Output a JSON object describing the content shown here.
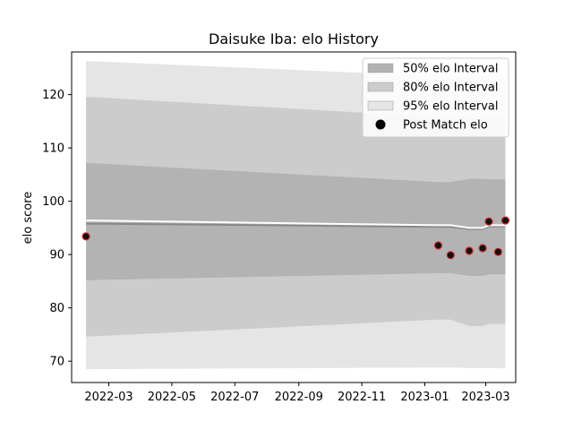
{
  "chart_data": {
    "type": "line",
    "title": "Daisuke Iba: elo History",
    "xlabel": "",
    "ylabel": "elo score",
    "x_ticks": [
      "2022-03",
      "2022-05",
      "2022-07",
      "2022-09",
      "2022-11",
      "2023-01",
      "2023-03"
    ],
    "y_ticks": [
      70,
      80,
      90,
      100,
      110,
      120
    ],
    "xlim": [
      "2022-01-24",
      "2023-03-30"
    ],
    "ylim": [
      66,
      128
    ],
    "grid": false,
    "legend_position": "top-right",
    "legend": [
      {
        "label": "50% elo Interval",
        "kind": "band",
        "color": "#b3b3b3"
      },
      {
        "label": "80% elo Interval",
        "kind": "band",
        "color": "#cccccc"
      },
      {
        "label": "95% elo Interval",
        "kind": "band",
        "color": "#e5e5e5"
      },
      {
        "label": "Post Match elo",
        "kind": "marker",
        "color": "#000000"
      }
    ],
    "x": [
      "2022-02-07",
      "2023-01-14",
      "2023-01-26",
      "2023-02-13",
      "2023-02-26",
      "2023-03-04",
      "2023-03-13",
      "2023-03-20"
    ],
    "series": [
      {
        "name": "95% elo Interval",
        "color": "#e5e5e5",
        "upper": [
          126.3,
          123.5,
          123.5,
          123.5,
          123.5,
          123.5,
          123.5,
          123.5
        ],
        "lower": [
          68.5,
          68.8,
          68.8,
          68.7,
          68.7,
          68.7,
          68.7,
          68.6
        ]
      },
      {
        "name": "80% elo Interval",
        "color": "#cccccc",
        "upper": [
          119.6,
          115.8,
          115.9,
          115.5,
          115.6,
          115.6,
          115.6,
          115.6
        ],
        "lower": [
          74.6,
          77.8,
          77.8,
          76.6,
          76.6,
          77.0,
          77.0,
          77.0
        ]
      },
      {
        "name": "50% elo Interval",
        "color": "#b3b3b3",
        "upper": [
          107.2,
          103.6,
          103.6,
          104.2,
          104.2,
          104.1,
          104.1,
          104.1
        ],
        "lower": [
          85.2,
          86.5,
          86.5,
          86.0,
          86.0,
          86.3,
          86.3,
          86.3
        ]
      },
      {
        "name": "",
        "color": "#888888",
        "values": [
          95.8,
          95.2,
          95.2,
          94.8,
          94.8,
          95.3,
          95.3,
          95.3
        ]
      },
      {
        "name": "",
        "color": "#ffffff",
        "values": [
          96.4,
          95.5,
          95.5,
          95.0,
          95.0,
          95.5,
          95.5,
          95.5
        ]
      }
    ],
    "points": {
      "name": "Post Match elo",
      "fill": "#111111",
      "edge": "#d62728",
      "x": [
        "2022-02-07",
        "2023-01-14",
        "2023-01-26",
        "2023-02-13",
        "2023-02-26",
        "2023-03-04",
        "2023-03-13",
        "2023-03-20"
      ],
      "y": [
        93.4,
        91.7,
        89.9,
        90.7,
        91.2,
        96.2,
        90.5,
        96.4
      ]
    }
  }
}
